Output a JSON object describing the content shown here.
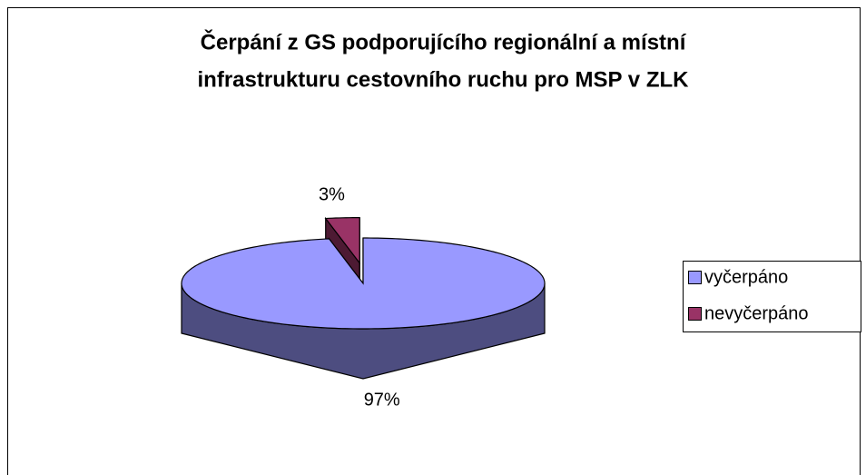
{
  "chart_data": {
    "type": "pie3d",
    "title": [
      "Čerpání z GS podporujícího regionální a místní",
      "infrastrukturu cestovního ruchu pro MSP v ZLK"
    ],
    "categories": [
      "vyčerpáno",
      "nevyčerpáno"
    ],
    "values": [
      97,
      3
    ],
    "value_labels": [
      "97%",
      "3%"
    ],
    "colors": [
      "#9999ff",
      "#993366"
    ],
    "exploded_slice": 1,
    "legend": "right"
  }
}
